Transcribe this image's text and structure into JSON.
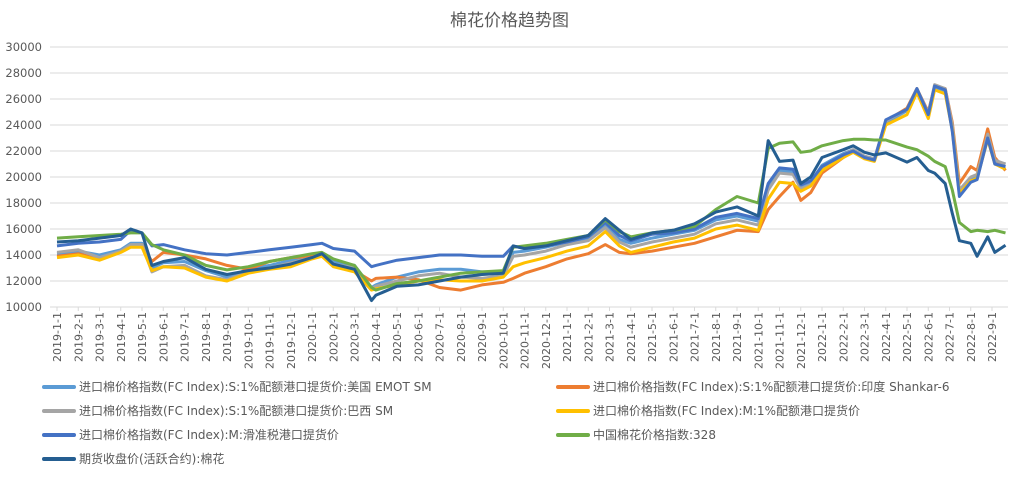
{
  "chart_data": {
    "type": "line",
    "title": "棉花价格趋势图",
    "xlabel": "",
    "ylabel": "",
    "ylim": [
      10000,
      30000
    ],
    "y_ticks": [
      10000,
      12000,
      14000,
      16000,
      18000,
      20000,
      22000,
      24000,
      26000,
      28000,
      30000
    ],
    "grid": true,
    "legend_position": "bottom",
    "x_tick_labels": [
      "2019-1-1",
      "2019-2-1",
      "2019-3-1",
      "2019-4-1",
      "2019-5-1",
      "2019-6-1",
      "2019-7-1",
      "2019-8-1",
      "2019-9-1",
      "2019-10-1",
      "2019-11-1",
      "2019-12-1",
      "2020-1-1",
      "2020-2-1",
      "2020-3-1",
      "2020-4-1",
      "2020-5-1",
      "2020-6-1",
      "2020-7-1",
      "2020-8-1",
      "2020-9-1",
      "2020-10-1",
      "2020-11-1",
      "2020-12-1",
      "2021-1-1",
      "2021-2-1",
      "2021-3-1",
      "2021-4-1",
      "2021-5-1",
      "2021-6-1",
      "2021-7-1",
      "2021-8-1",
      "2021-9-1",
      "2021-10-1",
      "2021-11-1",
      "2021-12-1",
      "2022-1-1",
      "2022-2-1",
      "2022-3-1",
      "2022-4-1",
      "2022-5-1",
      "2022-6-1",
      "2022-7-1",
      "2022-8-1",
      "2022-9-1"
    ],
    "x": [
      "2019-01-01",
      "2019-02-01",
      "2019-03-01",
      "2019-04-01",
      "2019-04-15",
      "2019-05-01",
      "2019-05-15",
      "2019-06-01",
      "2019-07-01",
      "2019-08-01",
      "2019-09-01",
      "2019-10-01",
      "2019-11-01",
      "2019-12-01",
      "2020-01-01",
      "2020-01-15",
      "2020-02-01",
      "2020-03-01",
      "2020-03-25",
      "2020-04-01",
      "2020-05-01",
      "2020-06-01",
      "2020-07-01",
      "2020-08-01",
      "2020-09-01",
      "2020-10-01",
      "2020-10-15",
      "2020-11-01",
      "2020-12-01",
      "2021-01-01",
      "2021-02-01",
      "2021-02-25",
      "2021-03-15",
      "2021-04-01",
      "2021-05-01",
      "2021-06-01",
      "2021-07-01",
      "2021-08-01",
      "2021-09-01",
      "2021-10-01",
      "2021-10-15",
      "2021-11-01",
      "2021-11-20",
      "2021-12-01",
      "2021-12-15",
      "2022-01-01",
      "2022-02-01",
      "2022-02-15",
      "2022-03-01",
      "2022-03-15",
      "2022-04-01",
      "2022-05-01",
      "2022-05-15",
      "2022-06-01",
      "2022-06-10",
      "2022-06-25",
      "2022-07-05",
      "2022-07-15",
      "2022-08-01",
      "2022-08-10",
      "2022-08-25",
      "2022-09-05",
      "2022-09-20"
    ],
    "series": [
      {
        "name": "进口棉价格指数(FC Index):S:1%配额港口提货价:美国 EMOT SM",
        "color": "#5B9BD5",
        "values": [
          14100,
          14300,
          14000,
          14400,
          14900,
          14900,
          13000,
          13400,
          13500,
          12800,
          12300,
          12900,
          13200,
          13600,
          13900,
          14100,
          13500,
          13200,
          11500,
          11700,
          12300,
          12700,
          12900,
          12900,
          12700,
          12700,
          14200,
          14300,
          14600,
          15000,
          15300,
          16300,
          15200,
          14900,
          15300,
          15600,
          15900,
          16700,
          17000,
          16600,
          19300,
          20500,
          20400,
          19300,
          19600,
          20900,
          21800,
          22100,
          21600,
          21400,
          24200,
          25100,
          26600,
          24700,
          26900,
          26600,
          23800,
          18800,
          19800,
          20000,
          23100,
          21200,
          21000
        ]
      },
      {
        "name": "进口棉价格指数(FC Index):S:1%配额港口提货价:印度 Shankar-6",
        "color": "#ED7D31",
        "values": [
          13900,
          14100,
          13700,
          14300,
          14700,
          14800,
          13500,
          14200,
          14000,
          13700,
          13200,
          12900,
          13500,
          13800,
          13900,
          14000,
          13300,
          12800,
          12000,
          12200,
          12300,
          12100,
          11500,
          11300,
          11700,
          11900,
          12200,
          12600,
          13100,
          13700,
          14100,
          14800,
          14200,
          14100,
          14300,
          14600,
          14900,
          15400,
          15900,
          15800,
          17500,
          18500,
          19600,
          18200,
          18800,
          20300,
          21500,
          22000,
          21500,
          21300,
          24300,
          25300,
          26800,
          25000,
          27000,
          26800,
          24200,
          19500,
          20800,
          20500,
          23700,
          21500,
          20500
        ]
      },
      {
        "name": "进口棉价格指数(FC Index):S:1%配额港口提货价:巴西 SM",
        "color": "#A5A5A5",
        "values": [
          14200,
          14400,
          13800,
          14300,
          14800,
          14800,
          12700,
          13100,
          13200,
          12400,
          12100,
          12700,
          13000,
          13400,
          13800,
          14000,
          13300,
          13000,
          11400,
          11600,
          12000,
          12400,
          12600,
          12300,
          12200,
          12400,
          13900,
          14000,
          14300,
          14800,
          15100,
          16100,
          15000,
          14600,
          15000,
          15300,
          15600,
          16400,
          16700,
          16300,
          19000,
          20300,
          20200,
          19100,
          19400,
          20700,
          21700,
          22100,
          21600,
          21400,
          24300,
          25200,
          26800,
          24900,
          27100,
          26800,
          24000,
          19000,
          20000,
          20200,
          23300,
          21300,
          21000
        ]
      },
      {
        "name": "进口棉价格指数(FC Index):M:1%配额港口提货价",
        "color": "#FFC000",
        "values": [
          13800,
          14000,
          13600,
          14200,
          14600,
          14600,
          12800,
          13100,
          13000,
          12300,
          12000,
          12600,
          12900,
          13100,
          13700,
          13900,
          13100,
          12700,
          11300,
          11400,
          11700,
          12000,
          12100,
          12000,
          12000,
          12300,
          13100,
          13400,
          13800,
          14300,
          14700,
          15800,
          14700,
          14200,
          14600,
          15000,
          15300,
          16000,
          16300,
          15900,
          18300,
          19600,
          19500,
          18900,
          19300,
          20500,
          21500,
          21900,
          21400,
          21200,
          24000,
          24800,
          26500,
          24500,
          26700,
          26400,
          23600,
          18700,
          19700,
          19900,
          22900,
          21000,
          20600
        ]
      },
      {
        "name": "进口棉价格指数(FC Index):M:滑准税港口提货价",
        "color": "#4472C4",
        "values": [
          14700,
          14900,
          15000,
          15200,
          15900,
          15700,
          14700,
          14800,
          14400,
          14100,
          14000,
          14200,
          14400,
          14600,
          14800,
          14900,
          14500,
          14300,
          13100,
          13200,
          13600,
          13800,
          14000,
          14000,
          13900,
          13900,
          14700,
          14500,
          14700,
          15000,
          15400,
          16500,
          15500,
          15100,
          15600,
          15700,
          16000,
          16900,
          17200,
          16800,
          19500,
          20700,
          20600,
          19400,
          19700,
          20800,
          21700,
          22000,
          21500,
          21300,
          24400,
          25200,
          26800,
          24800,
          27000,
          26700,
          23500,
          18500,
          19600,
          19800,
          23000,
          21000,
          20800
        ]
      },
      {
        "name": "中国棉花价格指数:328",
        "color": "#70AD47",
        "values": [
          15300,
          15400,
          15500,
          15600,
          15700,
          15700,
          14800,
          14400,
          14000,
          13200,
          12850,
          13100,
          13500,
          13800,
          14100,
          14200,
          13700,
          13200,
          11500,
          11300,
          11800,
          12000,
          12300,
          12600,
          12700,
          12800,
          14600,
          14700,
          14900,
          15200,
          15500,
          16700,
          15800,
          15400,
          15700,
          15900,
          16200,
          17500,
          18500,
          18000,
          22200,
          22600,
          22700,
          21900,
          22000,
          22400,
          22800,
          22900,
          22900,
          22850,
          22850,
          22300,
          22100,
          21600,
          21200,
          20800,
          19000,
          16500,
          15800,
          15900,
          15800,
          15900,
          15700
        ]
      },
      {
        "name": "期货收盘价(活跃合约):棉花",
        "color": "#255E91",
        "values": [
          15000,
          15100,
          15300,
          15500,
          16000,
          15700,
          13200,
          13500,
          13800,
          12900,
          12500,
          12800,
          13000,
          13300,
          13800,
          14100,
          13300,
          12900,
          10500,
          10900,
          11600,
          11700,
          12000,
          12300,
          12500,
          12600,
          14700,
          14500,
          14700,
          15100,
          15500,
          16800,
          15900,
          15200,
          15700,
          15900,
          16400,
          17300,
          17700,
          17000,
          22800,
          21200,
          21300,
          19500,
          20000,
          21500,
          22100,
          22400,
          21900,
          21700,
          21850,
          21150,
          21500,
          20500,
          20300,
          19500,
          17200,
          15100,
          14900,
          13900,
          15400,
          14200,
          14750
        ]
      }
    ]
  }
}
